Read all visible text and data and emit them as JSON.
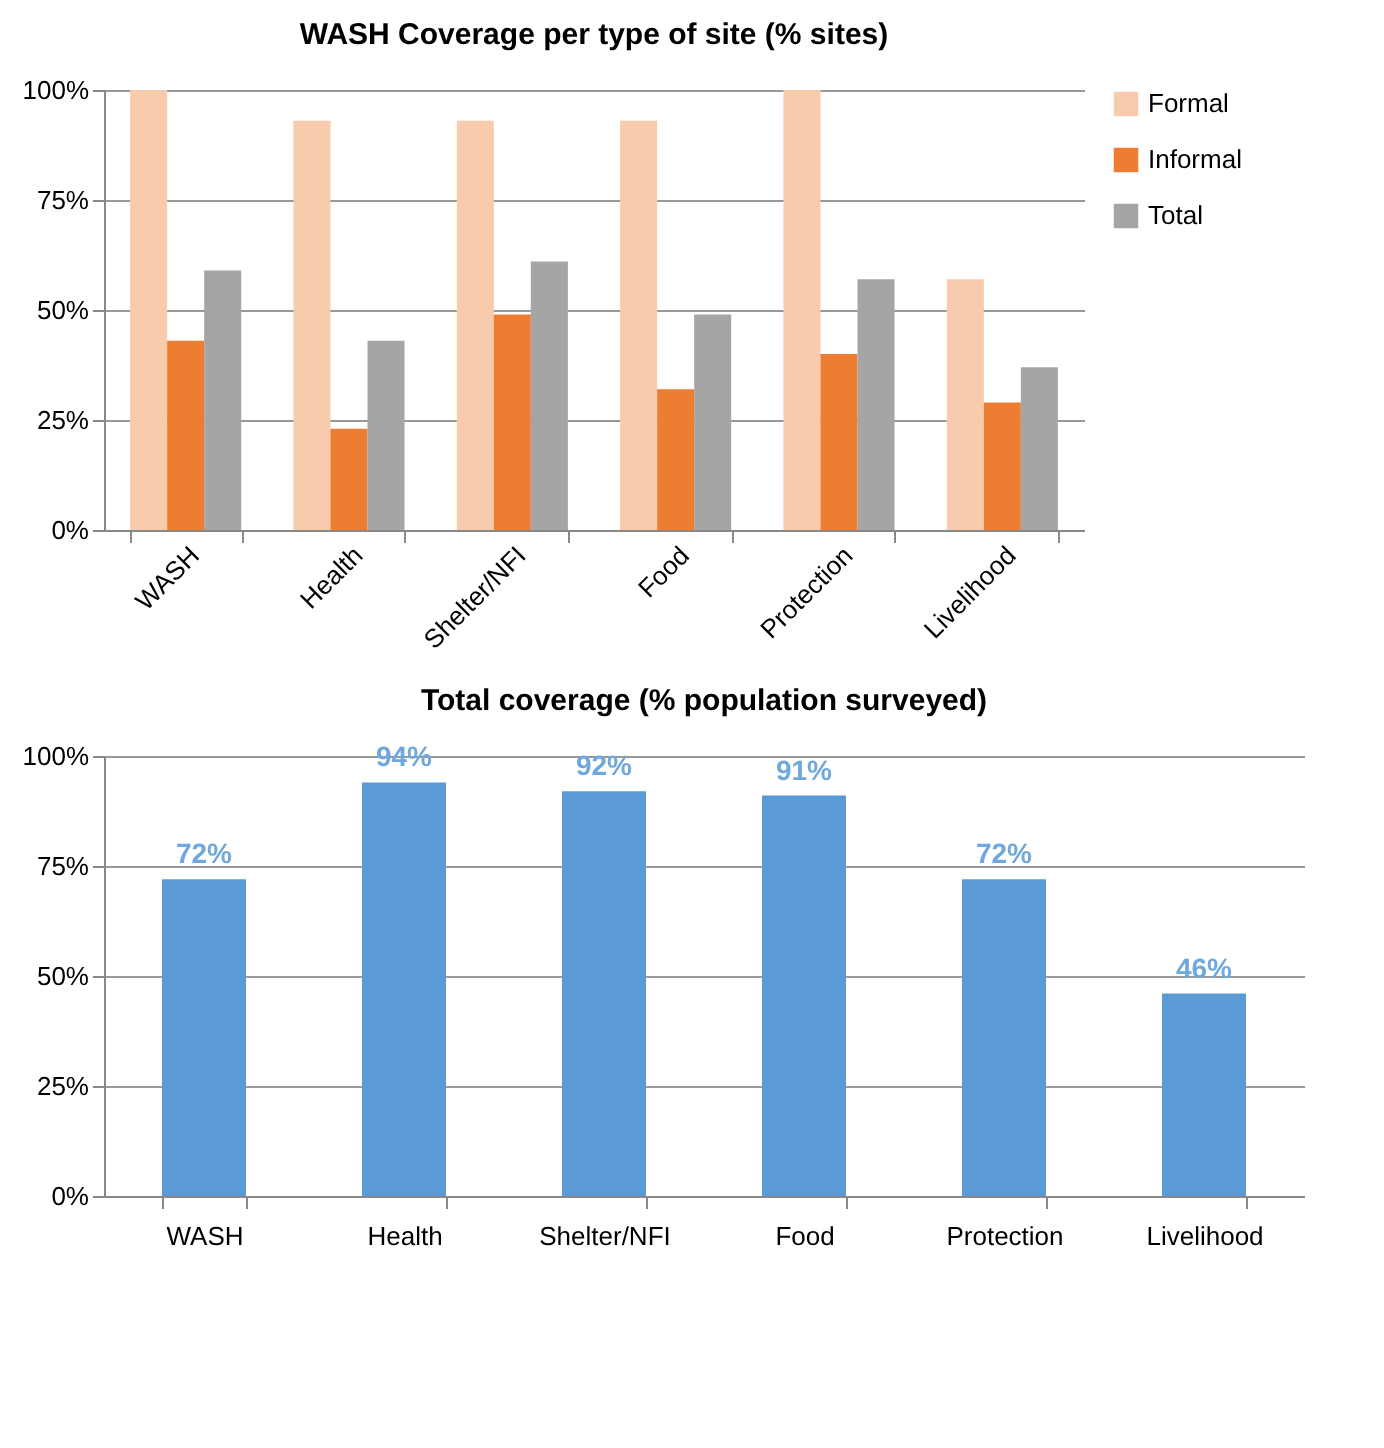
{
  "chart_data": [
    {
      "type": "bar",
      "title": "WASH Coverage per type of site (% sites)",
      "categories": [
        "WASH",
        "Health",
        "Shelter/NFI",
        "Food",
        "Protection",
        "Livelihood"
      ],
      "series": [
        {
          "name": "Formal",
          "color": "#f8cbad",
          "values": [
            100,
            93,
            93,
            93,
            100,
            57
          ]
        },
        {
          "name": "Informal",
          "color": "#ed7d31",
          "values": [
            43,
            23,
            49,
            32,
            40,
            29
          ]
        },
        {
          "name": "Total",
          "color": "#a5a5a5",
          "values": [
            59,
            43,
            61,
            49,
            57,
            37
          ]
        }
      ],
      "ylim": [
        0,
        100
      ],
      "yticks": [
        {
          "value": 0,
          "label": "0%"
        },
        {
          "value": 25,
          "label": "25%"
        },
        {
          "value": 50,
          "label": "50%"
        },
        {
          "value": 75,
          "label": "75%"
        },
        {
          "value": 100,
          "label": "100%"
        }
      ],
      "grid": "y",
      "legend": "right"
    },
    {
      "type": "bar",
      "title": "Total coverage (% population surveyed)",
      "categories": [
        "WASH",
        "Health",
        "Shelter/NFI",
        "Food",
        "Protection",
        "Livelihood"
      ],
      "series": [
        {
          "color": "#5b9bd5",
          "values": [
            72,
            94,
            92,
            91,
            72,
            46
          ]
        }
      ],
      "value_labels": [
        "72%",
        "94%",
        "92%",
        "91%",
        "72%",
        "46%"
      ],
      "ylim": [
        0,
        100
      ],
      "yticks": [
        {
          "value": 0,
          "label": "0%"
        },
        {
          "value": 25,
          "label": "25%"
        },
        {
          "value": 50,
          "label": "50%"
        },
        {
          "value": 75,
          "label": "75%"
        },
        {
          "value": 100,
          "label": "100%"
        }
      ],
      "grid": "y"
    }
  ]
}
